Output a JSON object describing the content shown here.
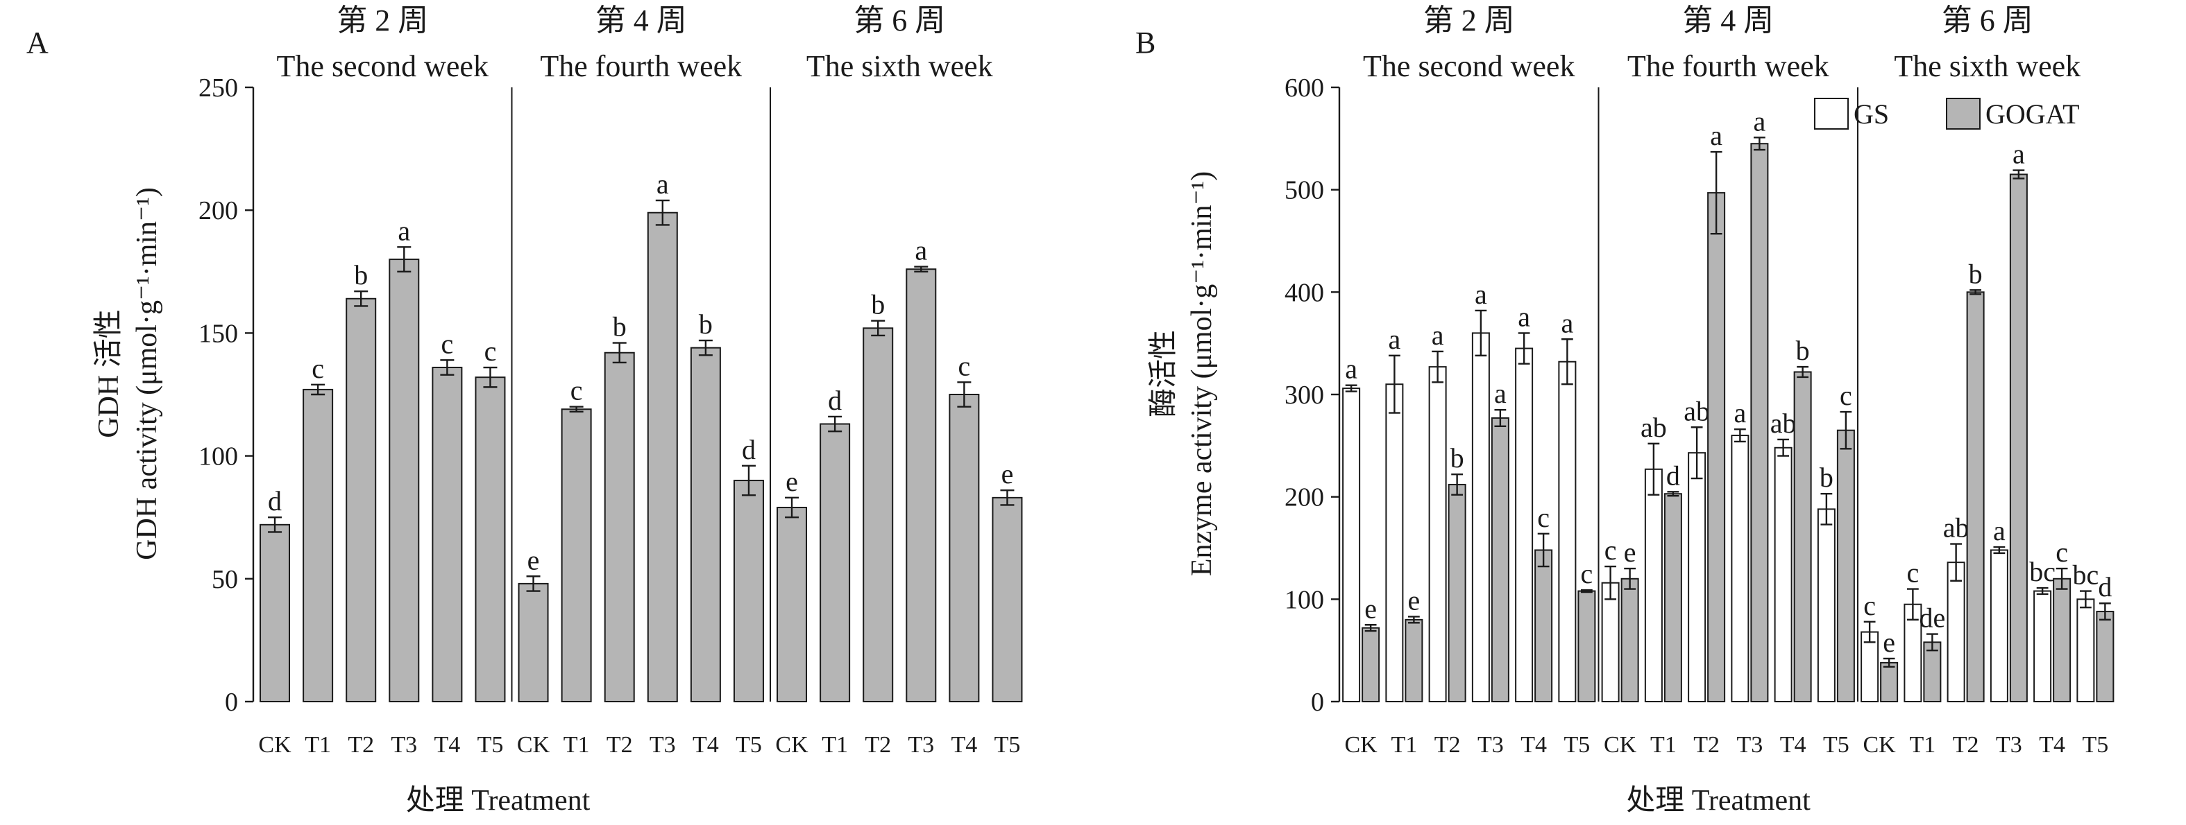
{
  "chart_data": [
    {
      "panel": "A",
      "type": "bar",
      "ylabel_cn": "GDH 活性",
      "ylabel_en": "GDH activity (μmol·g⁻¹·min⁻¹)",
      "xlabel": "处理 Treatment",
      "ylim": [
        0,
        250
      ],
      "yticks": [
        0,
        50,
        100,
        150,
        200,
        250
      ],
      "groups": [
        {
          "label_cn": "第 2 周",
          "label_en": "The second week"
        },
        {
          "label_cn": "第 4 周",
          "label_en": "The fourth week"
        },
        {
          "label_cn": "第 6 周",
          "label_en": "The sixth week"
        }
      ],
      "categories": [
        "CK",
        "T1",
        "T2",
        "T3",
        "T4",
        "T5"
      ],
      "series": [
        {
          "color": "#b5b5b5",
          "values": [
            [
              72,
              127,
              164,
              180,
              136,
              132
            ],
            [
              48,
              119,
              142,
              199,
              144,
              90
            ],
            [
              79,
              113,
              152,
              176,
              125,
              83
            ]
          ],
          "errors": [
            [
              3,
              2,
              3,
              5,
              3,
              4
            ],
            [
              3,
              1,
              4,
              5,
              3,
              6
            ],
            [
              4,
              3,
              3,
              1,
              5,
              3
            ]
          ],
          "labels": [
            [
              "d",
              "c",
              "b",
              "a",
              "c",
              "c"
            ],
            [
              "e",
              "c",
              "b",
              "a",
              "b",
              "d"
            ],
            [
              "e",
              "d",
              "b",
              "a",
              "c",
              "e"
            ]
          ]
        }
      ]
    },
    {
      "panel": "B",
      "type": "bar",
      "ylabel_cn": "酶活性",
      "ylabel_en": "Enzyme activity (μmol·g⁻¹·min⁻¹)",
      "xlabel": "处理 Treatment",
      "ylim": [
        0,
        600
      ],
      "yticks": [
        0,
        100,
        200,
        300,
        400,
        500,
        600
      ],
      "groups": [
        {
          "label_cn": "第 2 周",
          "label_en": "The second week"
        },
        {
          "label_cn": "第 4 周",
          "label_en": "The fourth week"
        },
        {
          "label_cn": "第 6 周",
          "label_en": "The sixth week"
        }
      ],
      "categories": [
        "CK",
        "T1",
        "T2",
        "T3",
        "T4",
        "T5"
      ],
      "legend_position": "top-right",
      "series": [
        {
          "name": "GS",
          "color": "#ffffff",
          "values": [
            [
              306,
              310,
              327,
              360,
              345,
              332
            ],
            [
              116,
              227,
              243,
              260,
              248,
              188
            ],
            [
              68,
              95,
              136,
              148,
              108,
              100
            ]
          ],
          "errors": [
            [
              3,
              28,
              15,
              22,
              15,
              22
            ],
            [
              16,
              25,
              25,
              6,
              8,
              15
            ],
            [
              10,
              15,
              18,
              3,
              3,
              8
            ]
          ],
          "labels": [
            [
              "a",
              "a",
              "a",
              "a",
              "a",
              "a"
            ],
            [
              "c",
              "ab",
              "ab",
              "a",
              "ab",
              "b"
            ],
            [
              "c",
              "c",
              "ab",
              "a",
              "bc",
              "bc"
            ]
          ]
        },
        {
          "name": "GOGAT",
          "color": "#b5b5b5",
          "values": [
            [
              72,
              80,
              212,
              277,
              148,
              108
            ],
            [
              120,
              203,
              497,
              545,
              322,
              265
            ],
            [
              38,
              58,
              400,
              515,
              120,
              88
            ]
          ],
          "errors": [
            [
              3,
              3,
              10,
              8,
              16,
              1
            ],
            [
              10,
              2,
              40,
              6,
              5,
              18
            ],
            [
              4,
              8,
              2,
              4,
              10,
              8
            ]
          ],
          "labels": [
            [
              "e",
              "e",
              "b",
              "a",
              "c",
              "c"
            ],
            [
              "e",
              "d",
              "a",
              "a",
              "b",
              "c"
            ],
            [
              "e",
              "de",
              "b",
              "a",
              "c",
              "d"
            ]
          ]
        }
      ]
    }
  ]
}
